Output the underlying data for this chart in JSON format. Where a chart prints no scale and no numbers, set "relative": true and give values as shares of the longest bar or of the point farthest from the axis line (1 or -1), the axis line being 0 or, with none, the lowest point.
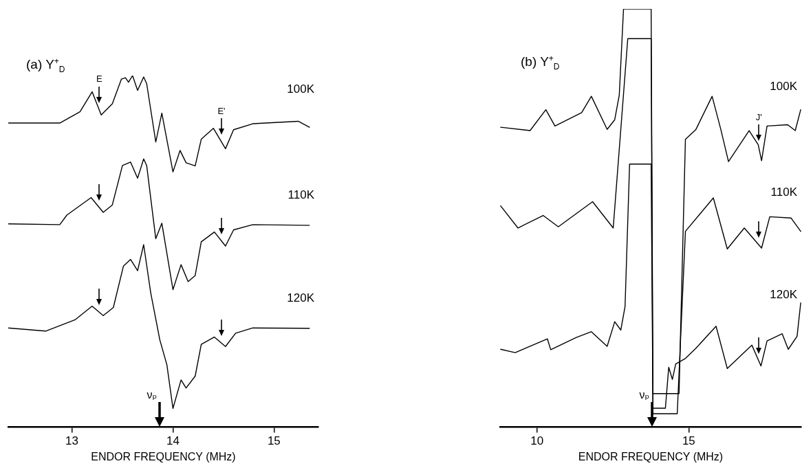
{
  "chart_data": [
    {
      "type": "line",
      "title": "(a) Y$^{+}$$_{D}$",
      "xlabel": "ENDOR FREQUENCY (MHz)",
      "relative": true,
      "xlim": [
        12.37,
        15.44
      ],
      "xticks": [
        13,
        14,
        15
      ],
      "annotations": [
        {
          "text": "E",
          "x": 13.27,
          "y": 0.903
        },
        {
          "text": "E'",
          "x": 14.48,
          "y": 0.811
        }
      ],
      "ref_lines": [
        {
          "axis": "x",
          "value": 13.87,
          "label": "νₚ"
        }
      ],
      "series": [
        {
          "name": "100K",
          "color": "#000000",
          "x": [
            12.37,
            12.88,
            13.08,
            13.2,
            13.29,
            13.4,
            13.49,
            13.53,
            13.56,
            13.6,
            13.65,
            13.71,
            13.74,
            13.83,
            13.89,
            14.0,
            14.07,
            14.13,
            14.22,
            14.28,
            14.4,
            14.52,
            14.6,
            14.79,
            15.24,
            15.35
          ],
          "values": [
            0.865,
            0.865,
            0.897,
            0.954,
            0.888,
            0.92,
            0.99,
            0.994,
            0.981,
            1.0,
            0.958,
            0.996,
            0.977,
            0.811,
            0.893,
            0.726,
            0.787,
            0.752,
            0.743,
            0.819,
            0.85,
            0.792,
            0.846,
            0.863,
            0.87,
            0.853
          ]
        },
        {
          "name": "110K",
          "color": "#000000",
          "x": [
            12.37,
            12.88,
            12.95,
            13.19,
            13.31,
            13.4,
            13.5,
            13.58,
            13.65,
            13.71,
            13.74,
            13.83,
            13.89,
            14.0,
            14.08,
            14.15,
            14.22,
            14.28,
            14.41,
            14.52,
            14.6,
            14.79,
            15.35
          ],
          "values": [
            0.578,
            0.576,
            0.603,
            0.653,
            0.611,
            0.632,
            0.744,
            0.754,
            0.708,
            0.763,
            0.744,
            0.536,
            0.58,
            0.391,
            0.462,
            0.414,
            0.431,
            0.527,
            0.555,
            0.515,
            0.561,
            0.576,
            0.574
          ]
        },
        {
          "name": "120K",
          "color": "#000000",
          "x": [
            12.37,
            12.74,
            13.03,
            13.2,
            13.31,
            13.41,
            13.51,
            13.58,
            13.65,
            13.71,
            13.78,
            13.87,
            13.94,
            14.0,
            14.08,
            14.13,
            14.22,
            14.28,
            14.41,
            14.52,
            14.62,
            14.79,
            15.35
          ],
          "values": [
            0.282,
            0.273,
            0.305,
            0.344,
            0.317,
            0.34,
            0.458,
            0.477,
            0.445,
            0.519,
            0.382,
            0.248,
            0.177,
            0.053,
            0.134,
            0.111,
            0.145,
            0.235,
            0.256,
            0.229,
            0.267,
            0.282,
            0.281
          ]
        }
      ]
    },
    {
      "type": "line",
      "title": "(b) Y$^{+}$$_{D}$",
      "xlabel": "ENDOR FREQUENCY (MHz)",
      "relative": true,
      "xlim": [
        8.78,
        18.71
      ],
      "xticks": [
        10,
        15
      ],
      "annotations": [
        {
          "text": "J'",
          "x": 17.31,
          "y": 0.668
        }
      ],
      "ref_lines": [
        {
          "axis": "x",
          "value": 13.8,
          "label": "νₚ"
        }
      ],
      "series": [
        {
          "name": "100K",
          "color": "#000000",
          "x": [
            8.8,
            9.77,
            10.29,
            10.59,
            11.47,
            11.79,
            12.31,
            12.56,
            12.71,
            12.85,
            13.76,
            13.82,
            14.68,
            14.89,
            15.23,
            15.77,
            16.06,
            16.31,
            16.99,
            17.29,
            17.4,
            17.58,
            18.26,
            18.51,
            18.69
          ],
          "values": [
            0.717,
            0.709,
            0.759,
            0.72,
            0.752,
            0.791,
            0.712,
            0.735,
            0.794,
            1.0,
            1.0,
            0.08,
            0.08,
            0.688,
            0.711,
            0.791,
            0.711,
            0.635,
            0.709,
            0.675,
            0.637,
            0.72,
            0.723,
            0.709,
            0.759
          ]
        },
        {
          "name": "110K",
          "color": "#000000",
          "x": [
            8.8,
            9.37,
            10.2,
            10.7,
            11.83,
            12.51,
            12.99,
            13.76,
            13.82,
            14.62,
            14.89,
            15.81,
            16.27,
            16.83,
            17.4,
            17.67,
            18.37,
            18.69
          ],
          "values": [
            0.529,
            0.476,
            0.506,
            0.479,
            0.539,
            0.476,
            0.929,
            0.929,
            0.032,
            0.032,
            0.468,
            0.548,
            0.426,
            0.476,
            0.428,
            0.503,
            0.5,
            0.468
          ]
        },
        {
          "name": "120K",
          "color": "#000000",
          "x": [
            8.8,
            9.28,
            10.34,
            10.45,
            11.29,
            11.79,
            12.31,
            12.56,
            12.76,
            12.9,
            13.05,
            13.76,
            13.82,
            14.23,
            14.34,
            14.46,
            14.57,
            14.89,
            15.23,
            15.9,
            16.27,
            17.08,
            17.38,
            17.58,
            18.08,
            18.28,
            18.57,
            18.69
          ],
          "values": [
            0.186,
            0.178,
            0.211,
            0.185,
            0.214,
            0.228,
            0.193,
            0.252,
            0.232,
            0.288,
            0.629,
            0.629,
            0.045,
            0.045,
            0.143,
            0.114,
            0.151,
            0.164,
            0.188,
            0.241,
            0.14,
            0.196,
            0.146,
            0.206,
            0.223,
            0.186,
            0.217,
            0.297
          ]
        }
      ]
    }
  ]
}
